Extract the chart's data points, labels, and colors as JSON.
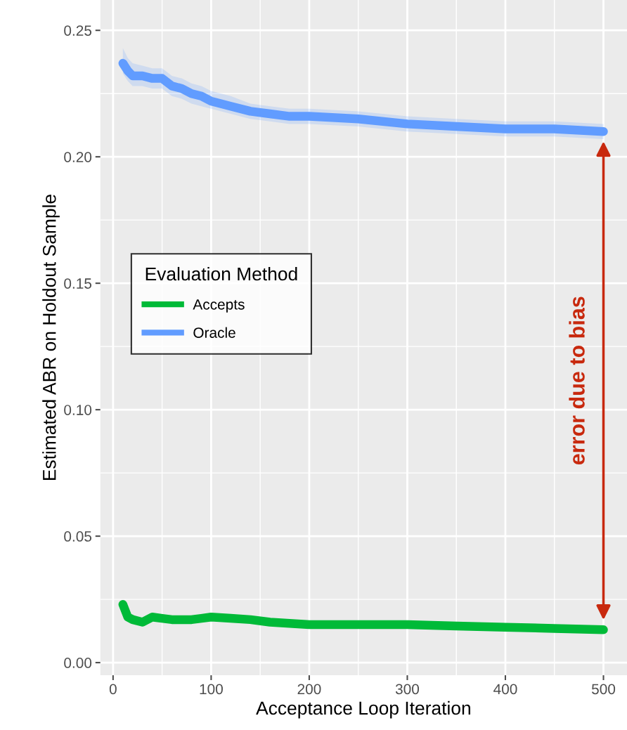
{
  "chart_data": {
    "type": "line",
    "xlabel": "Acceptance Loop Iteration",
    "ylabel": "Estimated ABR on Holdout Sample",
    "legend_title": "Evaluation Method",
    "legend": "left",
    "grid": true,
    "xlim": [
      -13,
      524
    ],
    "ylim": [
      -0.005,
      0.262
    ],
    "xticks": [
      0,
      100,
      200,
      300,
      400,
      500
    ],
    "yticks": [
      {
        "value": 0,
        "label": "0.00"
      },
      0.05,
      {
        "value": 0.1,
        "label": "0.10"
      },
      0.15,
      {
        "value": 0.2,
        "label": "0.20"
      },
      0.25
    ],
    "x": [
      10,
      15,
      20,
      30,
      40,
      50,
      60,
      70,
      80,
      90,
      100,
      120,
      140,
      160,
      180,
      200,
      250,
      300,
      350,
      400,
      450,
      500
    ],
    "series": [
      {
        "name": "Accepts",
        "color": "#00ba38",
        "values": [
          0.023,
          0.018,
          0.017,
          0.016,
          0.018,
          0.0175,
          0.017,
          0.017,
          0.017,
          0.0175,
          0.018,
          0.0175,
          0.017,
          0.016,
          0.0155,
          0.015,
          0.015,
          0.015,
          0.0145,
          0.014,
          0.0135,
          0.013
        ]
      },
      {
        "name": "Oracle",
        "color": "#619cff",
        "values": [
          0.237,
          0.234,
          0.232,
          0.232,
          0.231,
          0.231,
          0.228,
          0.227,
          0.225,
          0.224,
          0.222,
          0.22,
          0.218,
          0.217,
          0.216,
          0.216,
          0.215,
          0.213,
          0.212,
          0.211,
          0.211,
          0.21
        ],
        "lower": [
          0.233,
          0.23,
          0.228,
          0.228,
          0.227,
          0.227,
          0.224,
          0.223,
          0.221,
          0.22,
          0.219,
          0.217,
          0.215,
          0.214,
          0.213,
          0.213,
          0.212,
          0.21,
          0.209,
          0.208,
          0.208,
          0.207
        ],
        "upper": [
          0.243,
          0.239,
          0.237,
          0.236,
          0.235,
          0.235,
          0.232,
          0.231,
          0.229,
          0.228,
          0.226,
          0.224,
          0.221,
          0.22,
          0.219,
          0.219,
          0.218,
          0.216,
          0.215,
          0.214,
          0.214,
          0.213
        ]
      }
    ],
    "annotations": [
      "error due to bias"
    ]
  }
}
